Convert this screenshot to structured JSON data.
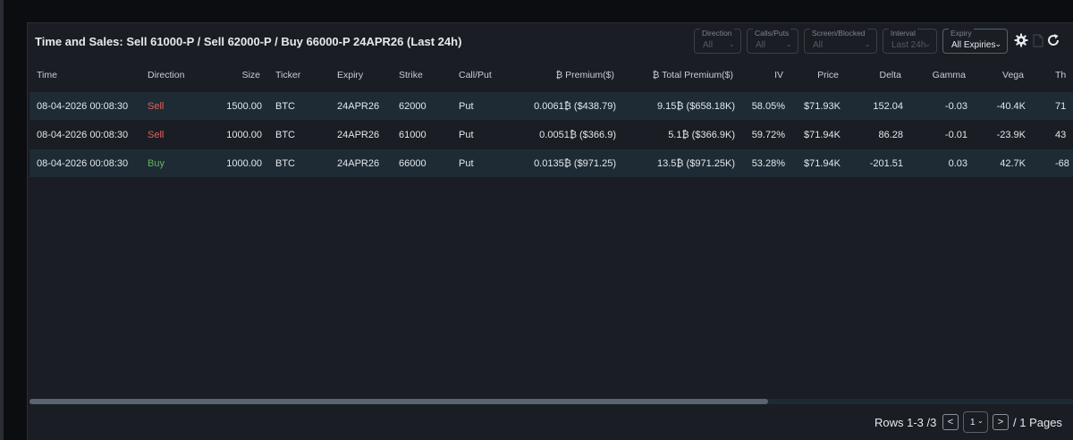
{
  "panel": {
    "title": "Time and Sales: Sell 61000-P / Sell 62000-P / Buy 66000-P 24APR26 (Last 24h)"
  },
  "filters": [
    {
      "label": "Direction",
      "value": "All"
    },
    {
      "label": "Calls/Puts",
      "value": "All"
    },
    {
      "label": "Screen/Blocked",
      "value": "All"
    },
    {
      "label": "Interval",
      "value": "Last 24h"
    },
    {
      "label": "Expiry",
      "value": "All Expiries"
    }
  ],
  "icons": {
    "settings": "gear-icon",
    "export": "file-icon",
    "refresh": "refresh-icon"
  },
  "table": {
    "headers": [
      "Time",
      "Direction",
      "Size",
      "Ticker",
      "Expiry",
      "Strike",
      "Call/Put",
      "₿ Premium($)",
      "₿ Total Premium($)",
      "IV",
      "Price",
      "Delta",
      "Gamma",
      "Vega",
      "Th"
    ],
    "rows": [
      [
        "08-04-2026 00:08:30",
        "Sell",
        "1500.00",
        "BTC",
        "24APR26",
        "62000",
        "Put",
        "0.0061₿ ($438.79)",
        "9.15₿ ($658.18K)",
        "58.05%",
        "$71.93K",
        "152.04",
        "-0.03",
        "-40.4K",
        "71"
      ],
      [
        "08-04-2026 00:08:30",
        "Sell",
        "1000.00",
        "BTC",
        "24APR26",
        "61000",
        "Put",
        "0.0051₿ ($366.9)",
        "5.1₿ ($366.9K)",
        "59.72%",
        "$71.94K",
        "86.28",
        "-0.01",
        "-23.9K",
        "43"
      ],
      [
        "08-04-2026 00:08:30",
        "Buy",
        "1000.00",
        "BTC",
        "24APR26",
        "66000",
        "Put",
        "0.0135₿ ($971.25)",
        "13.5₿ ($971.25K)",
        "53.28%",
        "$71.94K",
        "-201.51",
        "0.03",
        "42.7K",
        "-68"
      ]
    ]
  },
  "scroll": {
    "position_fraction": 0.707
  },
  "pagination": {
    "rows_label": "Rows 1-3 /3",
    "prev": "<",
    "current_page": "1",
    "next": ">",
    "pages_label": "/ 1 Pages"
  },
  "colors": {
    "sell": "#e0625b",
    "buy": "#5fb85a",
    "row_alt": "#1e2b34"
  }
}
